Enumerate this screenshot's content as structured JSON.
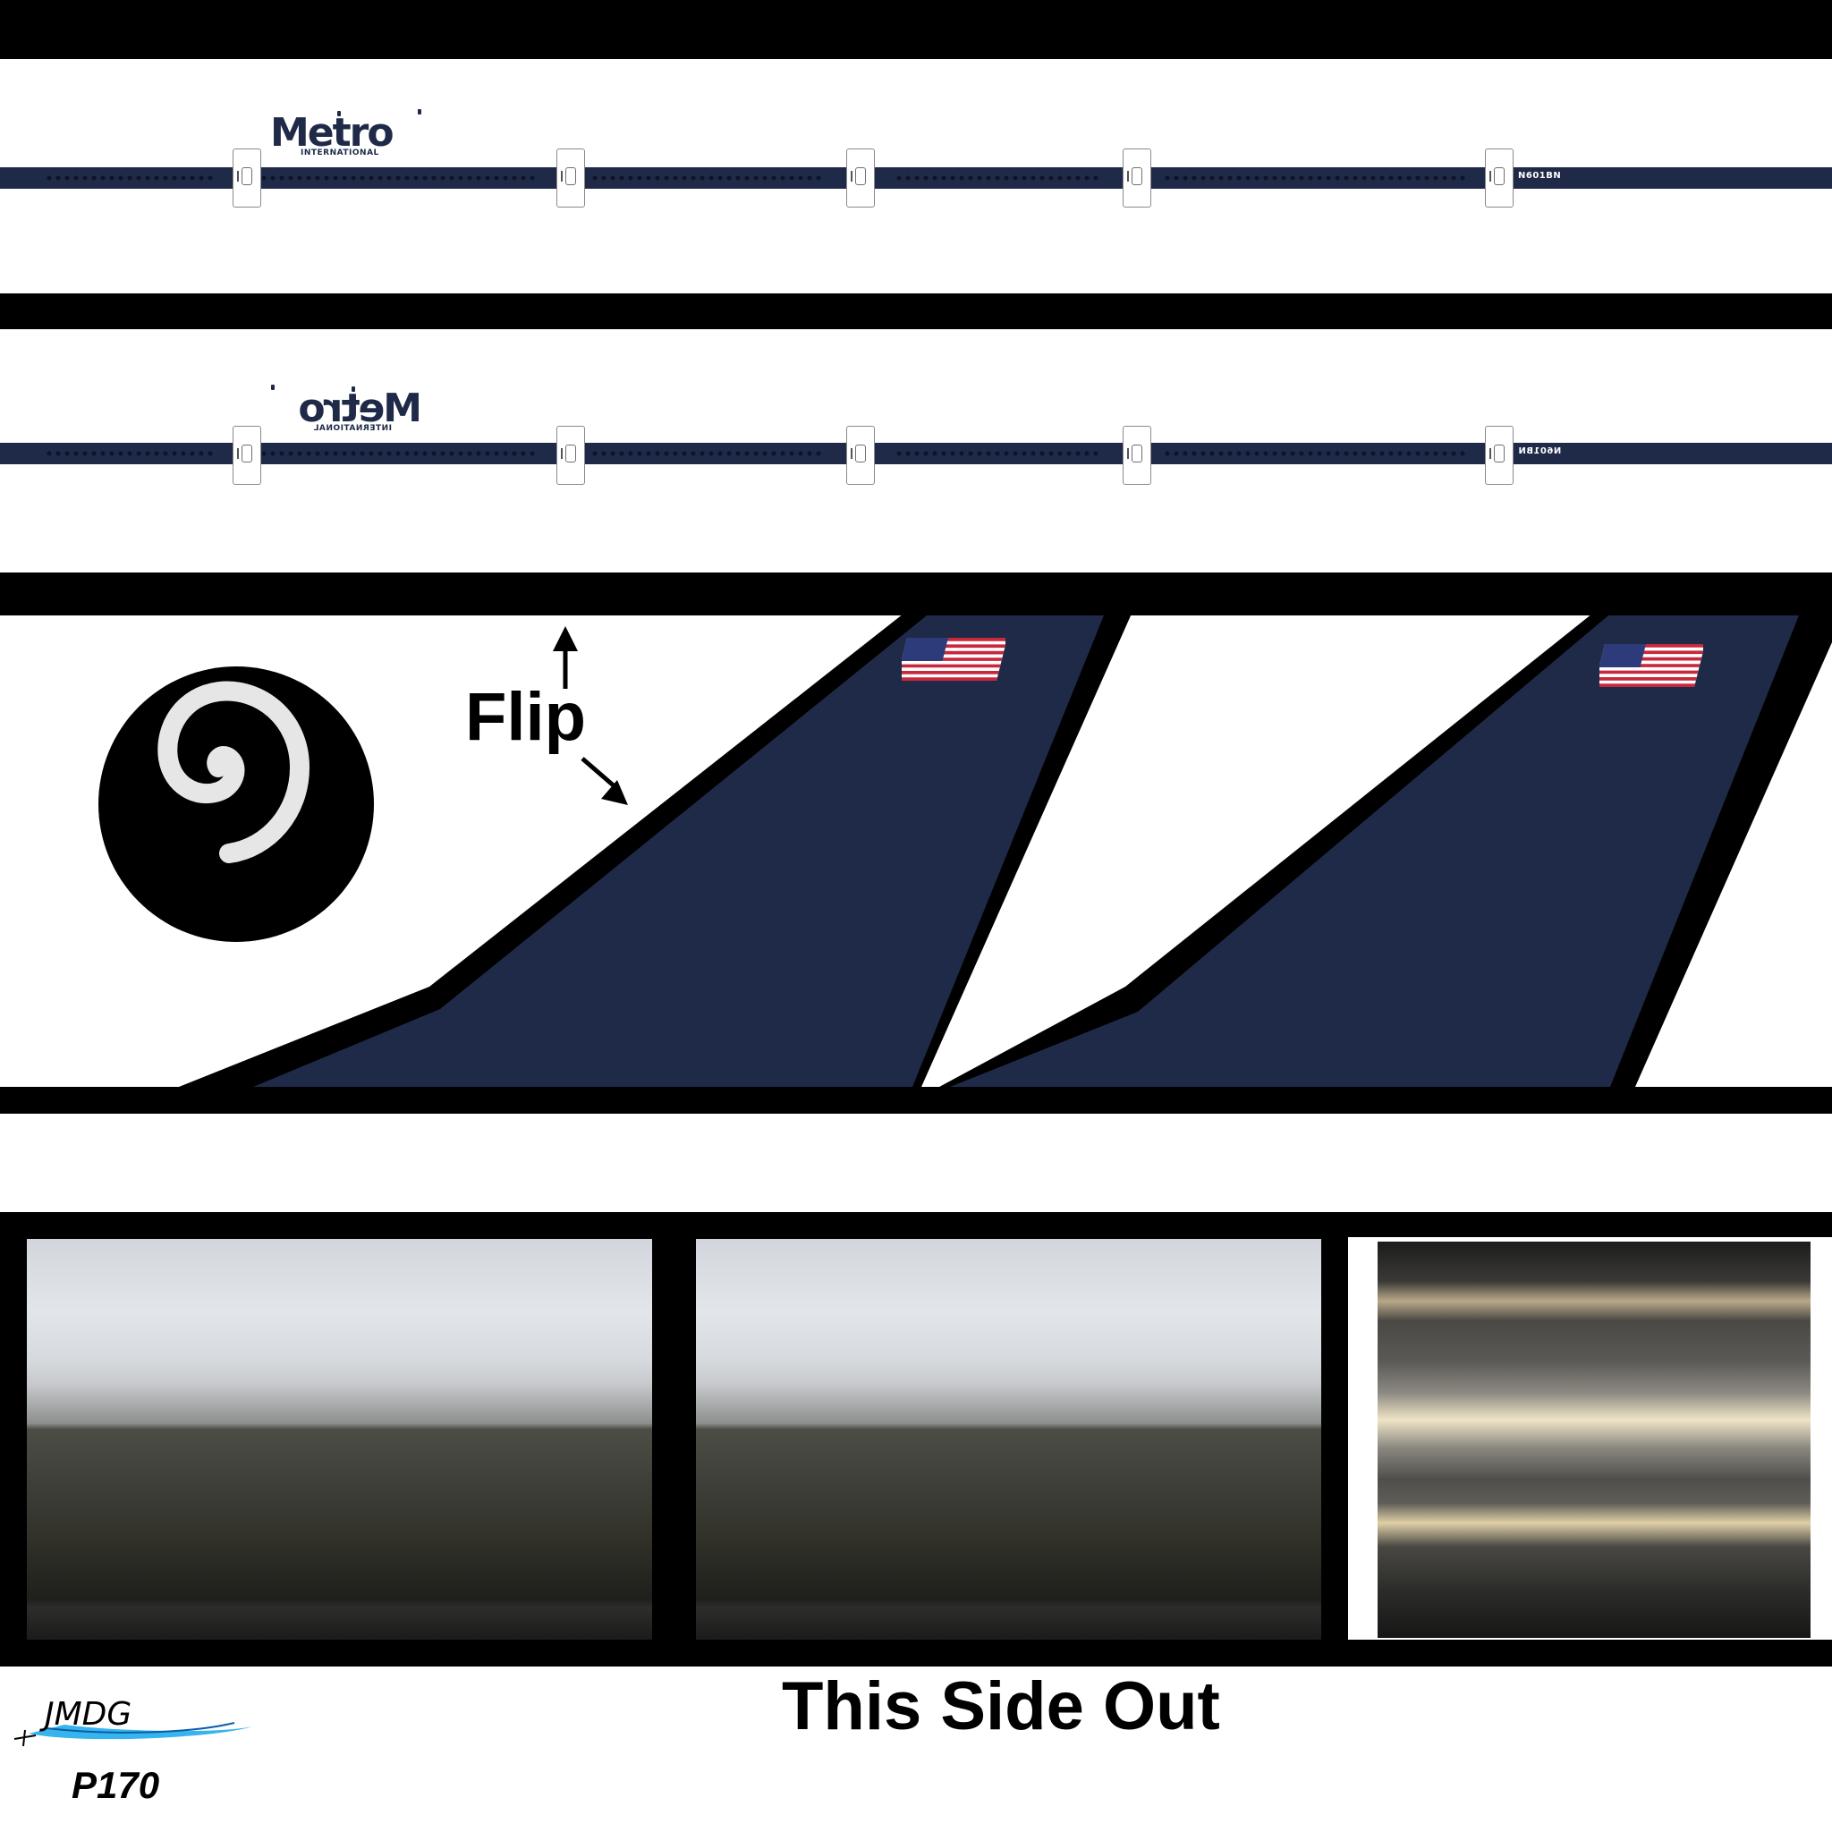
{
  "livery": {
    "logo_word": "Metro",
    "logo_sub": "INTERNATIONAL",
    "registration": "N601BN"
  },
  "annotations": {
    "flip_label": "Flip",
    "this_side_out": "This Side Out"
  },
  "branding": {
    "studio_logo_text": "JMDG",
    "model_code": "P170"
  },
  "colors": {
    "navy": "#1f2a48",
    "black": "#000000",
    "white": "#ffffff",
    "flag_red": "#c8273c",
    "flag_blue": "#2e3b7a",
    "swoosh": "#35b4ee"
  },
  "icons": {
    "tail_flag": "us-flag-icon",
    "spiral": "spiral-icon"
  }
}
